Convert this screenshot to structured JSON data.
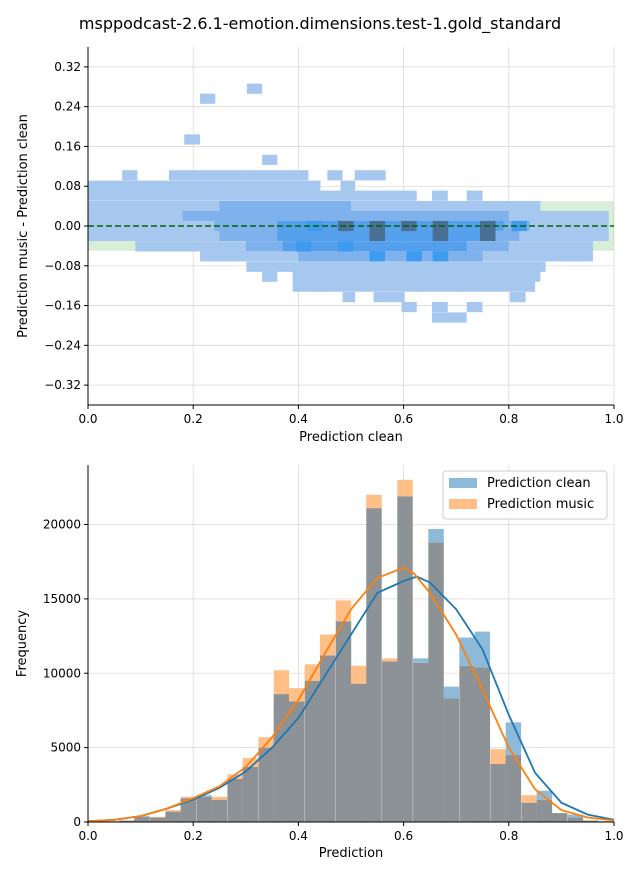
{
  "figure": {
    "title": "msppodcast-2.6.1-emotion.dimensions.test-1.gold_standard"
  },
  "colors": {
    "clean": "#1f77b4",
    "music": "#ff7f0e",
    "overlap": "#8c9295",
    "band": "#2ca02c",
    "zero_line": "#006400"
  },
  "chart_data": [
    {
      "type": "heatmap",
      "xlabel": "Prediction clean",
      "ylabel": "Prediction music - Prediction clean",
      "xlim": [
        0.0,
        1.0
      ],
      "ylim": [
        -0.36,
        0.36
      ],
      "xticks": [
        0.0,
        0.2,
        0.4,
        0.6,
        0.8,
        1.0
      ],
      "xtick_labels": [
        "0.0",
        "0.2",
        "0.4",
        "0.6",
        "0.8",
        "1.0"
      ],
      "yticks": [
        -0.32,
        -0.24,
        -0.16,
        -0.08,
        0.0,
        0.08,
        0.16,
        0.24,
        0.32
      ],
      "ytick_labels": [
        "−0.32",
        "−0.24",
        "−0.16",
        "−0.08",
        "0.00",
        "0.08",
        "0.16",
        "0.24",
        "0.32"
      ],
      "grid": true,
      "reference_line_y": 0.0,
      "tolerance_band": [
        -0.05,
        0.05
      ],
      "bin_width_x": 0.0294,
      "bin_height_y": 0.0205,
      "rows": [
        {
          "y": 0.276,
          "x0": 0.302,
          "x1": 0.331,
          "d": 1
        },
        {
          "y": 0.256,
          "x0": 0.213,
          "x1": 0.242,
          "d": 1
        },
        {
          "y": 0.174,
          "x0": 0.183,
          "x1": 0.213,
          "d": 1
        },
        {
          "y": 0.133,
          "x0": 0.331,
          "x1": 0.36,
          "d": 1
        },
        {
          "y": 0.102,
          "x0": 0.065,
          "x1": 0.094,
          "d": 1
        },
        {
          "y": 0.102,
          "x0": 0.154,
          "x1": 0.301,
          "d": 1
        },
        {
          "y": 0.102,
          "x0": 0.301,
          "x1": 0.419,
          "d": 1
        },
        {
          "y": 0.102,
          "x0": 0.455,
          "x1": 0.484,
          "d": 1
        },
        {
          "y": 0.102,
          "x0": 0.507,
          "x1": 0.566,
          "d": 1
        },
        {
          "y": 0.081,
          "x0": 0.0,
          "x1": 0.442,
          "d": 1
        },
        {
          "y": 0.081,
          "x0": 0.48,
          "x1": 0.508,
          "d": 1
        },
        {
          "y": 0.061,
          "x0": 0.0,
          "x1": 0.625,
          "d": 1
        },
        {
          "y": 0.061,
          "x0": 0.654,
          "x1": 0.684,
          "d": 1
        },
        {
          "y": 0.061,
          "x0": 0.72,
          "x1": 0.75,
          "d": 1
        },
        {
          "y": 0.04,
          "x0": 0.0,
          "x1": 0.86,
          "d": 1
        },
        {
          "y": 0.04,
          "x0": 0.25,
          "x1": 0.5,
          "d": 2
        },
        {
          "y": 0.02,
          "x0": 0.0,
          "x1": 0.99,
          "d": 1
        },
        {
          "y": 0.02,
          "x0": 0.18,
          "x1": 0.8,
          "d": 2
        },
        {
          "y": 0.0,
          "x0": 0.0,
          "x1": 0.99,
          "d": 1
        },
        {
          "y": 0.0,
          "x0": 0.24,
          "x1": 0.84,
          "d": 2
        },
        {
          "y": 0.0,
          "x0": 0.36,
          "x1": 0.79,
          "d": 3
        },
        {
          "y": -0.02,
          "x0": 0.0,
          "x1": 0.99,
          "d": 1
        },
        {
          "y": -0.02,
          "x0": 0.25,
          "x1": 0.82,
          "d": 2
        },
        {
          "y": -0.02,
          "x0": 0.36,
          "x1": 0.75,
          "d": 3
        },
        {
          "y": -0.041,
          "x0": 0.09,
          "x1": 0.96,
          "d": 1
        },
        {
          "y": -0.041,
          "x0": 0.3,
          "x1": 0.8,
          "d": 2
        },
        {
          "y": -0.041,
          "x0": 0.37,
          "x1": 0.72,
          "d": 3
        },
        {
          "y": -0.061,
          "x0": 0.213,
          "x1": 0.96,
          "d": 1
        },
        {
          "y": -0.061,
          "x0": 0.4,
          "x1": 0.75,
          "d": 2
        },
        {
          "y": -0.082,
          "x0": 0.301,
          "x1": 0.87,
          "d": 1
        },
        {
          "y": -0.102,
          "x0": 0.331,
          "x1": 0.36,
          "d": 1
        },
        {
          "y": -0.102,
          "x0": 0.389,
          "x1": 0.86,
          "d": 1
        },
        {
          "y": -0.122,
          "x0": 0.389,
          "x1": 0.85,
          "d": 1
        },
        {
          "y": -0.143,
          "x0": 0.484,
          "x1": 0.508,
          "d": 1
        },
        {
          "y": -0.143,
          "x0": 0.543,
          "x1": 0.602,
          "d": 1
        },
        {
          "y": -0.143,
          "x0": 0.802,
          "x1": 0.832,
          "d": 1
        },
        {
          "y": -0.163,
          "x0": 0.596,
          "x1": 0.625,
          "d": 1
        },
        {
          "y": -0.163,
          "x0": 0.654,
          "x1": 0.684,
          "d": 1
        },
        {
          "y": -0.163,
          "x0": 0.72,
          "x1": 0.75,
          "d": 1
        },
        {
          "y": -0.184,
          "x0": 0.654,
          "x1": 0.72,
          "d": 1
        }
      ],
      "dark_cells": [
        {
          "x": 0.49,
          "y": 0.0
        },
        {
          "x": 0.55,
          "y": 0.0
        },
        {
          "x": 0.61,
          "y": 0.0
        },
        {
          "x": 0.67,
          "y": 0.0
        },
        {
          "x": 0.76,
          "y": 0.0
        },
        {
          "x": 0.55,
          "y": -0.02
        },
        {
          "x": 0.67,
          "y": -0.02
        },
        {
          "x": 0.76,
          "y": -0.02
        }
      ],
      "bright_cells": [
        {
          "x": 0.41,
          "y": -0.041
        },
        {
          "x": 0.49,
          "y": -0.041
        },
        {
          "x": 0.55,
          "y": -0.061
        },
        {
          "x": 0.62,
          "y": -0.061
        },
        {
          "x": 0.67,
          "y": -0.061
        },
        {
          "x": 0.82,
          "y": 0.0
        },
        {
          "x": 0.43,
          "y": 0.0
        }
      ]
    },
    {
      "type": "bar",
      "xlabel": "Prediction",
      "ylabel": "Frequency",
      "xlim": [
        0.0,
        1.0
      ],
      "ylim": [
        0,
        24000
      ],
      "xticks": [
        0.0,
        0.2,
        0.4,
        0.6,
        0.8,
        1.0
      ],
      "xtick_labels": [
        "0.0",
        "0.2",
        "0.4",
        "0.6",
        "0.8",
        "1.0"
      ],
      "yticks": [
        0,
        5000,
        10000,
        15000,
        20000
      ],
      "ytick_labels": [
        "0",
        "5000",
        "10000",
        "15000",
        "20000"
      ],
      "grid": true,
      "legend_position": "top-right",
      "bin_width": 0.0294,
      "x": [
        0.0,
        0.029,
        0.059,
        0.088,
        0.118,
        0.147,
        0.176,
        0.206,
        0.235,
        0.265,
        0.294,
        0.324,
        0.353,
        0.382,
        0.412,
        0.441,
        0.471,
        0.5,
        0.529,
        0.559,
        0.588,
        0.618,
        0.647,
        0.676,
        0.706,
        0.735,
        0.765,
        0.794,
        0.824,
        0.853,
        0.882,
        0.912,
        0.941,
        0.971
      ],
      "series": [
        {
          "name": "Prediction clean",
          "values": [
            0,
            50,
            100,
            400,
            300,
            700,
            1600,
            1800,
            1500,
            2900,
            3700,
            5000,
            8600,
            8100,
            9500,
            11200,
            13500,
            9300,
            21100,
            10800,
            21900,
            11000,
            19700,
            9100,
            12400,
            12800,
            3900,
            6700,
            1300,
            2100,
            600,
            500,
            100,
            50
          ],
          "kde": [
            [
              0.0,
              50
            ],
            [
              0.05,
              150
            ],
            [
              0.1,
              400
            ],
            [
              0.15,
              900
            ],
            [
              0.2,
              1500
            ],
            [
              0.25,
              2300
            ],
            [
              0.3,
              3400
            ],
            [
              0.35,
              5000
            ],
            [
              0.4,
              7000
            ],
            [
              0.45,
              9800
            ],
            [
              0.5,
              12600
            ],
            [
              0.55,
              15400
            ],
            [
              0.6,
              16200
            ],
            [
              0.625,
              16500
            ],
            [
              0.65,
              16100
            ],
            [
              0.7,
              14300
            ],
            [
              0.75,
              11600
            ],
            [
              0.8,
              7200
            ],
            [
              0.85,
              3300
            ],
            [
              0.9,
              1300
            ],
            [
              0.95,
              500
            ],
            [
              1.0,
              150
            ]
          ]
        },
        {
          "name": "Prediction music",
          "values": [
            0,
            50,
            100,
            350,
            350,
            800,
            1700,
            1700,
            1700,
            3200,
            4300,
            5700,
            10200,
            9000,
            10600,
            12600,
            14900,
            10500,
            22000,
            11000,
            23000,
            10700,
            18800,
            8300,
            10500,
            10400,
            4900,
            4500,
            1800,
            1500,
            600,
            300,
            100,
            50
          ],
          "kde": [
            [
              0.0,
              50
            ],
            [
              0.05,
              150
            ],
            [
              0.1,
              400
            ],
            [
              0.15,
              900
            ],
            [
              0.2,
              1600
            ],
            [
              0.25,
              2400
            ],
            [
              0.3,
              3700
            ],
            [
              0.35,
              5700
            ],
            [
              0.4,
              8200
            ],
            [
              0.45,
              11300
            ],
            [
              0.5,
              14300
            ],
            [
              0.55,
              16400
            ],
            [
              0.6,
              17100
            ],
            [
              0.62,
              16700
            ],
            [
              0.65,
              15400
            ],
            [
              0.7,
              12600
            ],
            [
              0.75,
              8900
            ],
            [
              0.8,
              5000
            ],
            [
              0.85,
              2200
            ],
            [
              0.9,
              800
            ],
            [
              0.95,
              300
            ],
            [
              1.0,
              100
            ]
          ]
        }
      ]
    }
  ]
}
